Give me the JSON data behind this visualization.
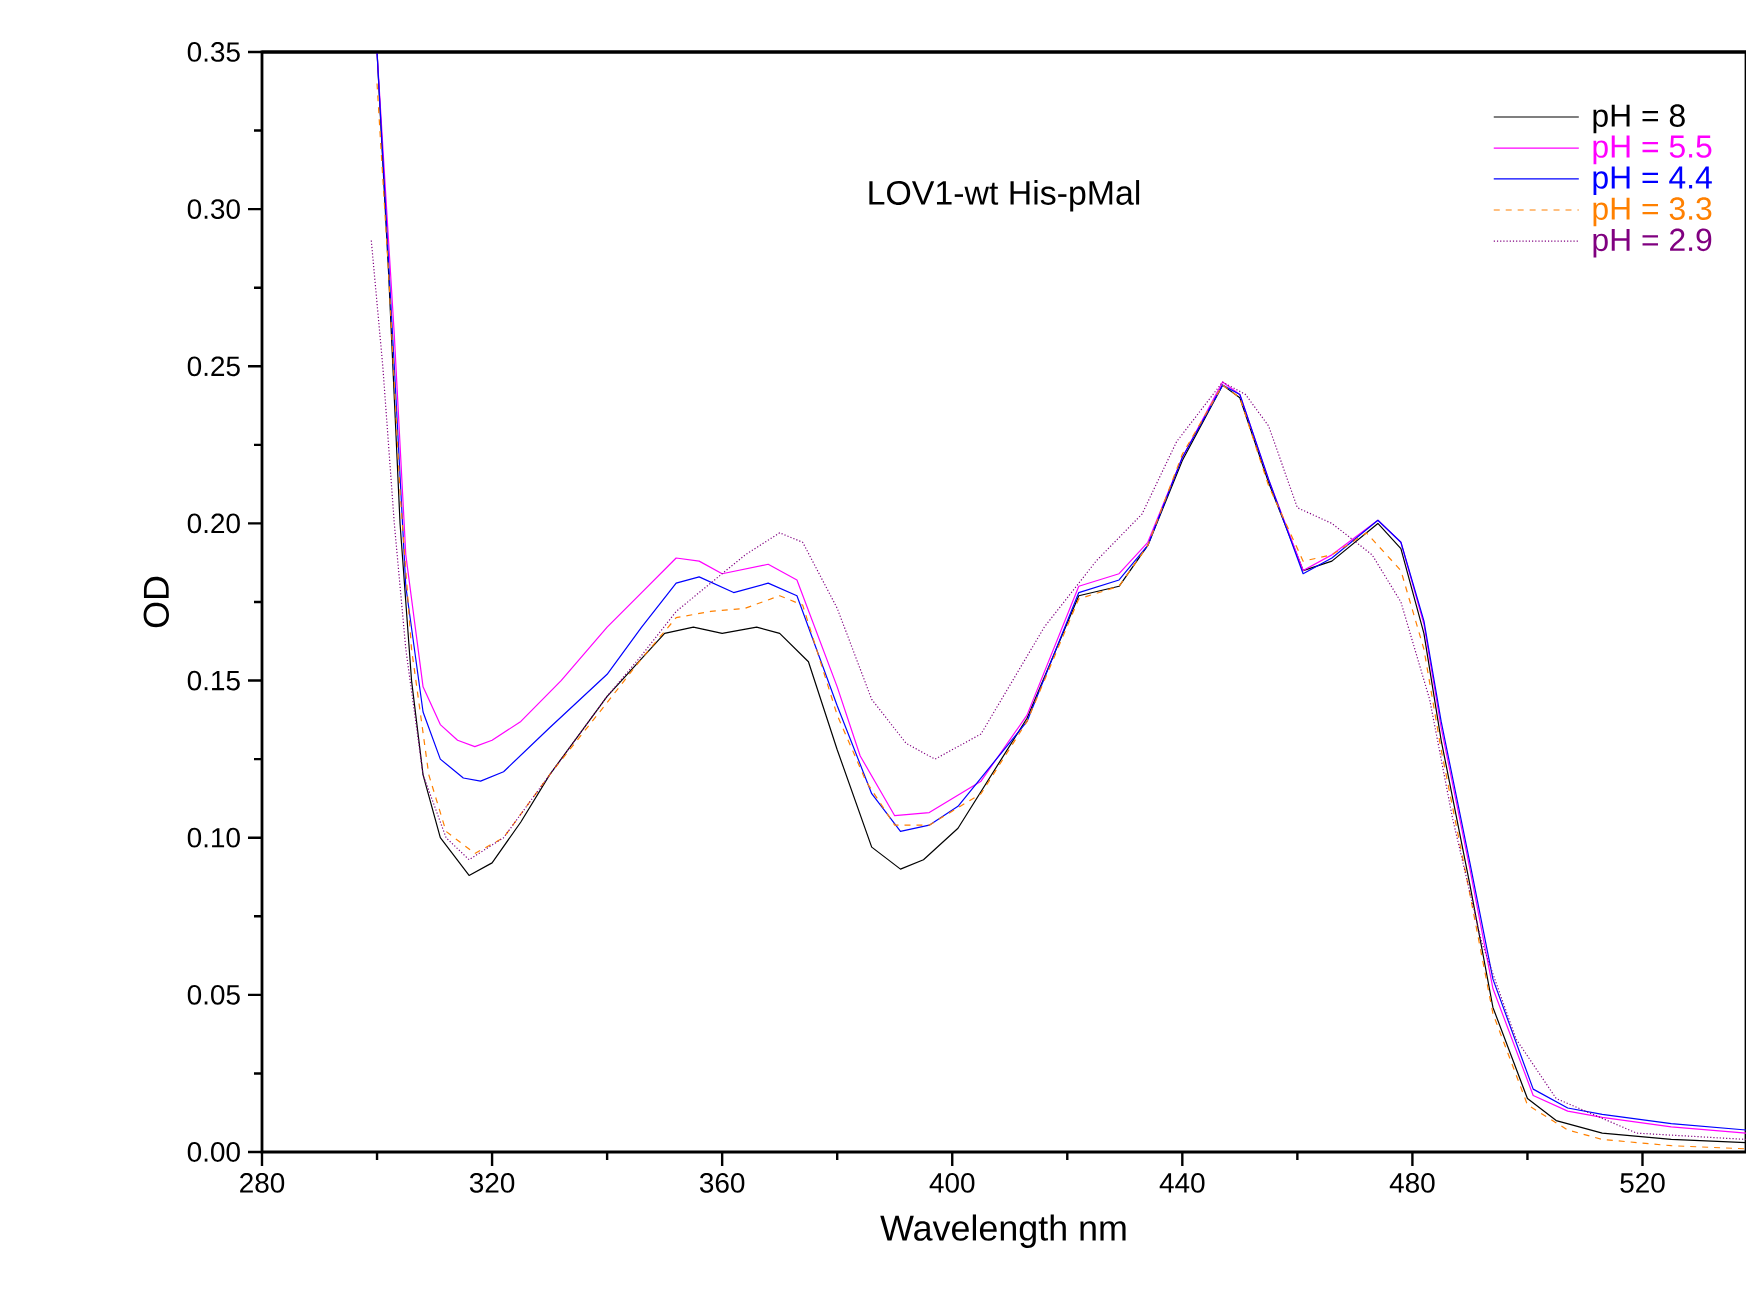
{
  "chart_data": {
    "type": "line",
    "title": "LOV1-wt His-pMal",
    "xlabel": "Wavelength  nm",
    "ylabel": "OD",
    "xlim": [
      280,
      538
    ],
    "ylim": [
      0,
      0.35
    ],
    "xticks": [
      280,
      320,
      360,
      400,
      440,
      480,
      520
    ],
    "yticks": [
      {
        "value": 0,
        "label": "0.00"
      },
      {
        "value": 0.05,
        "label": "0.05"
      },
      {
        "value": 0.1,
        "label": "0.10"
      },
      {
        "value": 0.15,
        "label": "0.15"
      },
      {
        "value": 0.2,
        "label": "0.20"
      },
      {
        "value": 0.25,
        "label": "0.25"
      },
      {
        "value": 0.3,
        "label": "0.30"
      },
      {
        "value": 0.35,
        "label": "0.35"
      }
    ],
    "grid": false,
    "legend": "top right",
    "marker": "none",
    "series": [
      {
        "name": "pH = 8",
        "color": "#000000",
        "line_style": "solid",
        "x": [
          300,
          302,
          304,
          306,
          308,
          311,
          316,
          320,
          325,
          330,
          340,
          350,
          355,
          360,
          366,
          370,
          375,
          380,
          386,
          391,
          395,
          401,
          413,
          422,
          429,
          434,
          440,
          447,
          450,
          455,
          461,
          466,
          474,
          478,
          482,
          485,
          490,
          494,
          500,
          505,
          513,
          525,
          538
        ],
        "values": [
          0.35,
          0.28,
          0.2,
          0.15,
          0.12,
          0.1,
          0.088,
          0.092,
          0.105,
          0.12,
          0.145,
          0.165,
          0.167,
          0.165,
          0.167,
          0.165,
          0.156,
          0.128,
          0.097,
          0.09,
          0.093,
          0.103,
          0.138,
          0.177,
          0.18,
          0.193,
          0.22,
          0.244,
          0.24,
          0.213,
          0.185,
          0.188,
          0.2,
          0.192,
          0.165,
          0.131,
          0.085,
          0.046,
          0.017,
          0.01,
          0.006,
          0.004,
          0.003
        ]
      },
      {
        "name": "pH = 5.5",
        "color": "#ff00ff",
        "line_style": "solid",
        "x": [
          300,
          303,
          305,
          308,
          311,
          314,
          317,
          320,
          325,
          332,
          340,
          346,
          352,
          356,
          360,
          368,
          373,
          380,
          384,
          390,
          396,
          405,
          413,
          422,
          429,
          434,
          440,
          447,
          450,
          455,
          461,
          466,
          474,
          478,
          482,
          485,
          490,
          494,
          501,
          507,
          513,
          525,
          538
        ],
        "values": [
          0.35,
          0.26,
          0.19,
          0.148,
          0.136,
          0.131,
          0.129,
          0.131,
          0.137,
          0.15,
          0.167,
          0.178,
          0.189,
          0.188,
          0.184,
          0.187,
          0.182,
          0.148,
          0.126,
          0.107,
          0.108,
          0.118,
          0.139,
          0.18,
          0.184,
          0.194,
          0.221,
          0.245,
          0.241,
          0.214,
          0.185,
          0.19,
          0.201,
          0.194,
          0.168,
          0.135,
          0.09,
          0.052,
          0.018,
          0.013,
          0.011,
          0.008,
          0.006
        ]
      },
      {
        "name": "pH = 4.4",
        "color": "#0000ff",
        "line_style": "solid",
        "x": [
          300,
          303,
          305,
          308,
          311,
          315,
          318,
          322,
          330,
          340,
          346,
          352,
          356,
          362,
          368,
          373,
          380,
          386,
          391,
          396,
          401,
          413,
          422,
          429,
          434,
          440,
          447,
          450,
          455,
          461,
          466,
          474,
          478,
          482,
          485,
          490,
          494,
          501,
          507,
          513,
          525,
          538
        ],
        "values": [
          0.35,
          0.25,
          0.18,
          0.14,
          0.125,
          0.119,
          0.118,
          0.121,
          0.135,
          0.152,
          0.167,
          0.181,
          0.183,
          0.178,
          0.181,
          0.177,
          0.142,
          0.114,
          0.102,
          0.104,
          0.11,
          0.137,
          0.178,
          0.182,
          0.193,
          0.221,
          0.244,
          0.241,
          0.214,
          0.184,
          0.189,
          0.201,
          0.194,
          0.169,
          0.137,
          0.092,
          0.055,
          0.02,
          0.014,
          0.012,
          0.009,
          0.007
        ]
      },
      {
        "name": "pH = 3.3",
        "color": "#ff8000",
        "line_style": "dashed",
        "x": [
          300,
          302,
          304,
          306,
          309,
          312,
          317,
          322,
          330,
          340,
          346,
          352,
          358,
          364,
          370,
          374,
          380,
          385,
          390,
          396,
          405,
          413,
          422,
          429,
          434,
          440,
          447,
          450,
          455,
          461,
          466,
          472,
          478,
          482,
          485,
          490,
          494,
          500,
          507,
          513,
          525,
          538
        ],
        "values": [
          0.34,
          0.28,
          0.21,
          0.16,
          0.12,
          0.102,
          0.095,
          0.1,
          0.12,
          0.143,
          0.157,
          0.17,
          0.172,
          0.173,
          0.177,
          0.174,
          0.139,
          0.118,
          0.104,
          0.104,
          0.114,
          0.137,
          0.176,
          0.18,
          0.193,
          0.222,
          0.244,
          0.24,
          0.212,
          0.188,
          0.19,
          0.197,
          0.185,
          0.16,
          0.128,
          0.082,
          0.044,
          0.015,
          0.007,
          0.004,
          0.002,
          0.001
        ]
      },
      {
        "name": "pH = 2.9",
        "color": "#800080",
        "line_style": "dotted",
        "x": [
          299,
          301,
          303,
          305,
          308,
          312,
          316,
          322,
          330,
          340,
          346,
          352,
          358,
          364,
          370,
          374,
          380,
          386,
          392,
          397,
          405,
          416,
          425,
          433,
          439,
          447,
          451,
          455,
          460,
          466,
          473,
          478,
          483,
          487,
          492,
          498,
          505,
          519,
          538
        ],
        "values": [
          0.29,
          0.25,
          0.2,
          0.16,
          0.12,
          0.1,
          0.093,
          0.1,
          0.12,
          0.145,
          0.158,
          0.172,
          0.181,
          0.19,
          0.197,
          0.194,
          0.173,
          0.144,
          0.13,
          0.125,
          0.133,
          0.167,
          0.188,
          0.203,
          0.226,
          0.245,
          0.241,
          0.231,
          0.205,
          0.2,
          0.19,
          0.175,
          0.144,
          0.106,
          0.067,
          0.036,
          0.017,
          0.006,
          0.004
        ]
      }
    ]
  }
}
